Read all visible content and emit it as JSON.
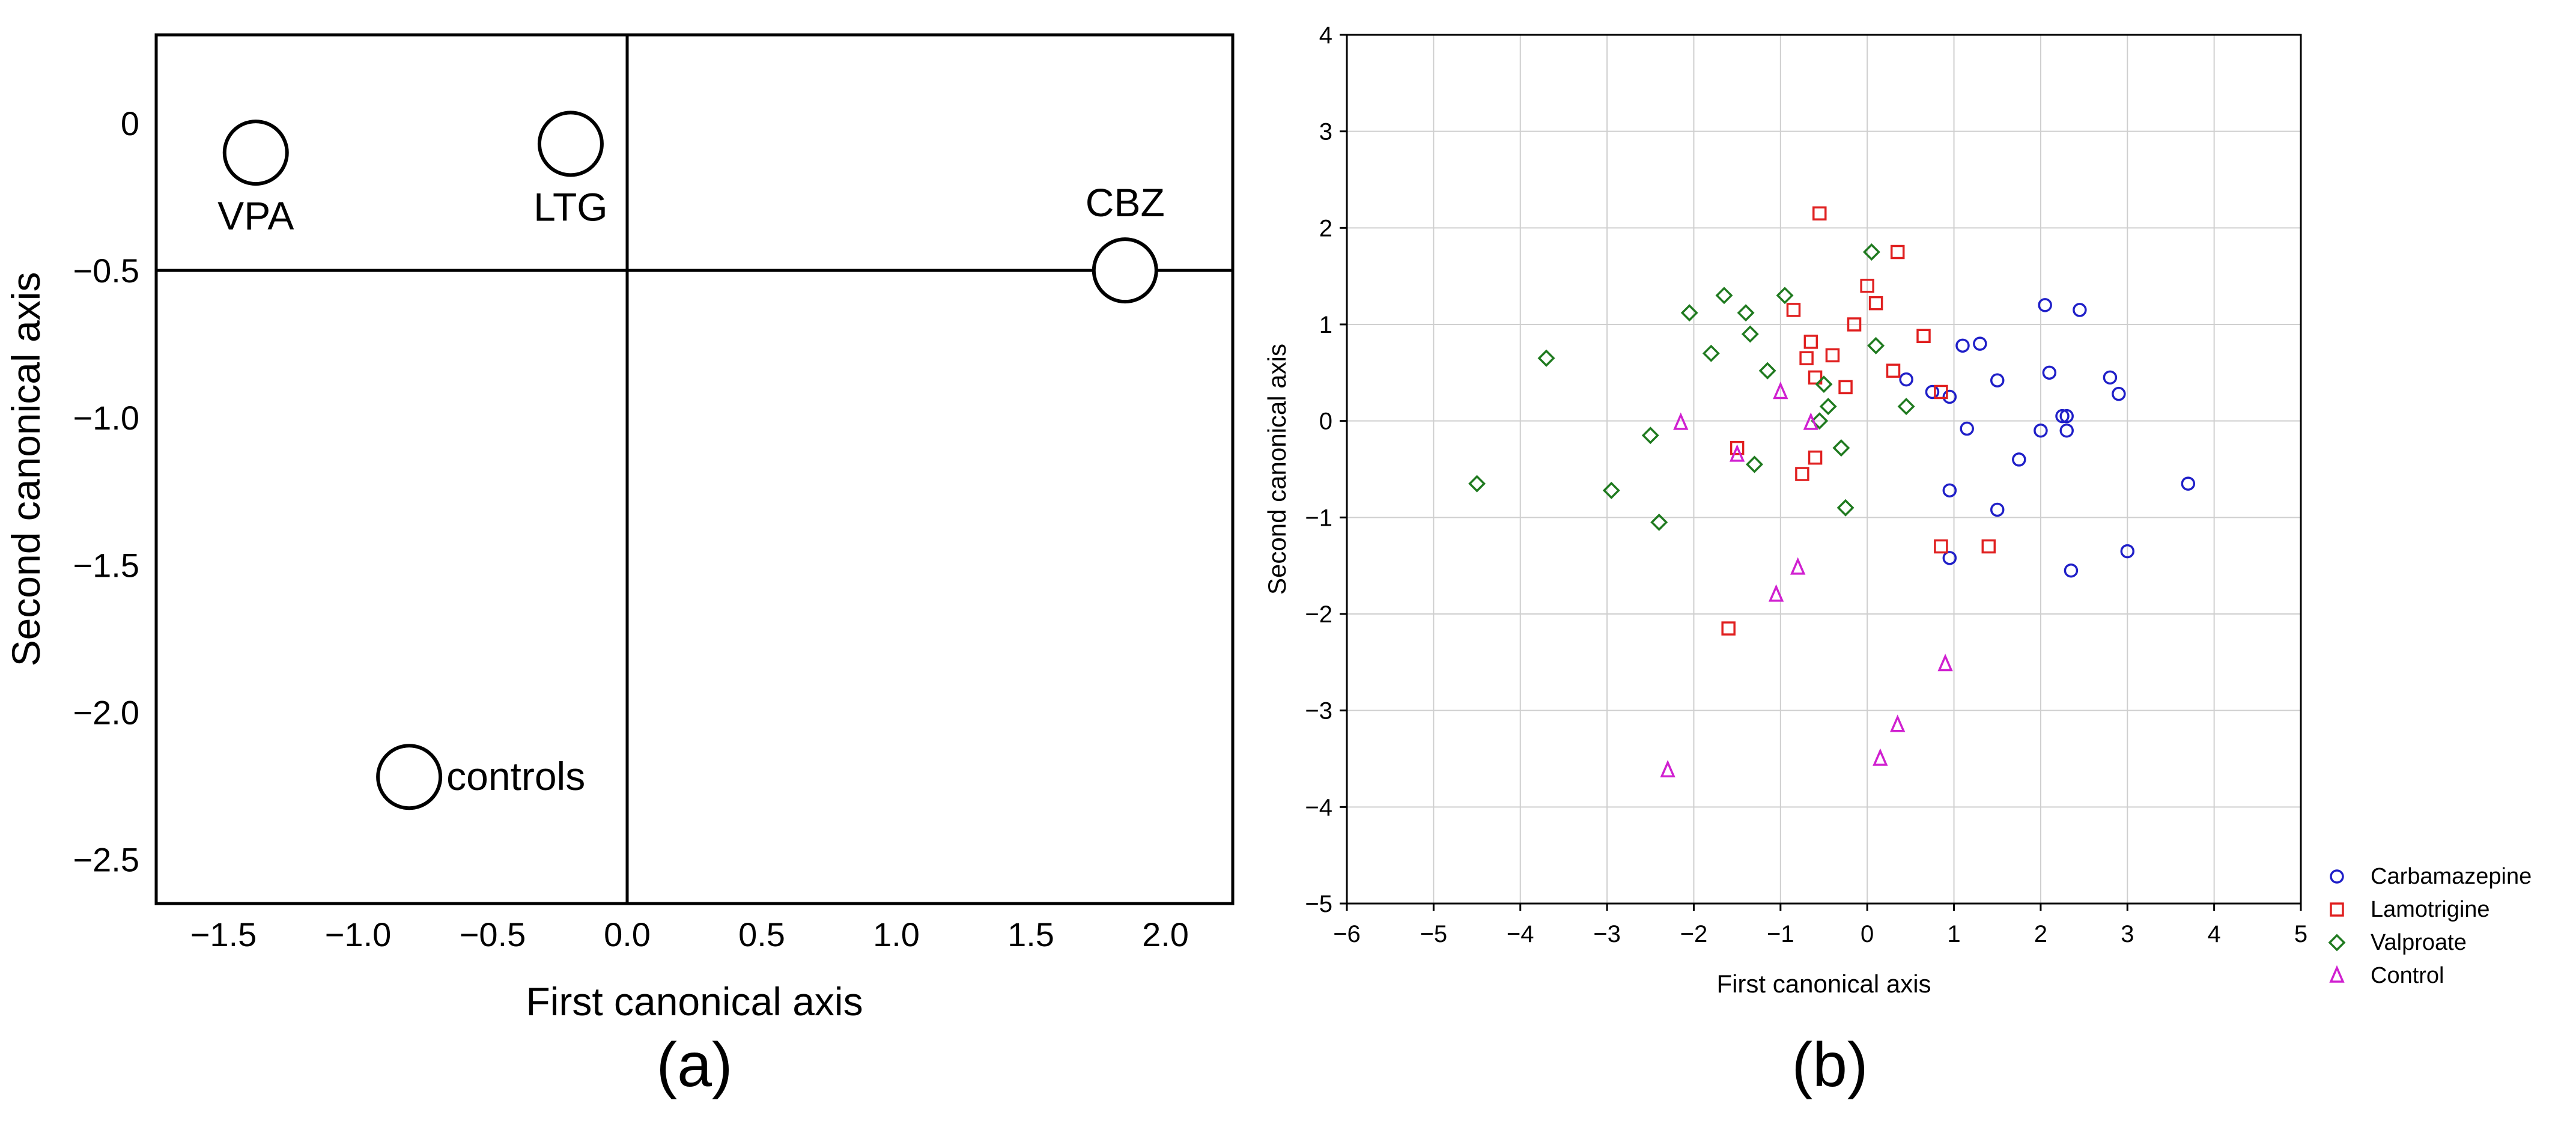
{
  "chart_data": [
    {
      "panel_label": "(a)",
      "type": "scatter",
      "xlabel": "First canonical axis",
      "ylabel": "Second canonical axis",
      "xlim": [
        -1.75,
        2.25
      ],
      "ylim": [
        -2.65,
        0.3
      ],
      "reference_lines": {
        "x": 0,
        "y": -0.5
      },
      "x_ticks": [
        {
          "value": -1.5,
          "label": "−1.5"
        },
        {
          "value": -1.0,
          "label": "−1.0"
        },
        {
          "value": -0.5,
          "label": "−0.5"
        },
        {
          "value": 0.0,
          "label": "0.0"
        },
        {
          "value": 0.5,
          "label": "0.5"
        },
        {
          "value": 1.0,
          "label": "1.0"
        },
        {
          "value": 1.5,
          "label": "1.5"
        },
        {
          "value": 2.0,
          "label": "2.0"
        }
      ],
      "y_ticks": [
        {
          "value": 0,
          "label": "0"
        },
        {
          "value": -0.5,
          "label": "−0.5"
        },
        {
          "value": -1.0,
          "label": "−1.0"
        },
        {
          "value": -1.5,
          "label": "−1.5"
        },
        {
          "value": -2.0,
          "label": "−2.0"
        },
        {
          "value": -2.5,
          "label": "−2.5"
        }
      ],
      "points": [
        {
          "label": "VPA",
          "x": -1.38,
          "y": -0.1,
          "label_side": "below"
        },
        {
          "label": "LTG",
          "x": -0.21,
          "y": -0.07,
          "label_side": "below"
        },
        {
          "label": "CBZ",
          "x": 1.85,
          "y": -0.5,
          "label_side": "above"
        },
        {
          "label": "controls",
          "x": -0.81,
          "y": -2.22,
          "label_side": "right"
        }
      ]
    },
    {
      "panel_label": "(b)",
      "type": "scatter",
      "xlabel": "First canonical axis",
      "ylabel": "Second canonical axis",
      "xlim": [
        -6,
        5
      ],
      "ylim": [
        -5,
        4
      ],
      "grid": true,
      "legend_position": "bottom-right",
      "x_ticks": [
        "−6",
        "−5",
        "−4",
        "−3",
        "−2",
        "−1",
        "0",
        "1",
        "2",
        "3",
        "4",
        "5"
      ],
      "y_ticks": [
        "−5",
        "−4",
        "−3",
        "−2",
        "−1",
        "0",
        "1",
        "2",
        "3",
        "4"
      ],
      "series": [
        {
          "name": "Carbamazepine",
          "marker": "circle",
          "color": "#1f1fc8",
          "points": [
            [
              0.45,
              0.43
            ],
            [
              0.75,
              0.3
            ],
            [
              0.95,
              0.25
            ],
            [
              1.1,
              0.78
            ],
            [
              1.3,
              0.8
            ],
            [
              1.5,
              0.42
            ],
            [
              1.15,
              -0.08
            ],
            [
              1.75,
              -0.4
            ],
            [
              0.95,
              -0.72
            ],
            [
              1.5,
              -0.92
            ],
            [
              0.95,
              -1.42
            ],
            [
              2.05,
              1.2
            ],
            [
              2.45,
              1.15
            ],
            [
              2.1,
              0.5
            ],
            [
              2.8,
              0.45
            ],
            [
              2.9,
              0.28
            ],
            [
              2.25,
              0.05
            ],
            [
              2.3,
              0.05
            ],
            [
              2.0,
              -0.1
            ],
            [
              2.3,
              -0.1
            ],
            [
              2.35,
              -1.55
            ],
            [
              3.0,
              -1.35
            ],
            [
              3.7,
              -0.65
            ]
          ]
        },
        {
          "name": "Lamotrigine",
          "marker": "square",
          "color": "#e02020",
          "points": [
            [
              -0.55,
              2.15
            ],
            [
              0.35,
              1.75
            ],
            [
              0.0,
              1.4
            ],
            [
              0.1,
              1.22
            ],
            [
              -0.85,
              1.15
            ],
            [
              -0.15,
              1.0
            ],
            [
              0.65,
              0.88
            ],
            [
              -0.65,
              0.82
            ],
            [
              -0.4,
              0.68
            ],
            [
              -0.7,
              0.65
            ],
            [
              0.3,
              0.52
            ],
            [
              -0.6,
              0.45
            ],
            [
              -0.25,
              0.35
            ],
            [
              0.85,
              0.3
            ],
            [
              -1.5,
              -0.28
            ],
            [
              -0.6,
              -0.38
            ],
            [
              -0.75,
              -0.55
            ],
            [
              0.85,
              -1.3
            ],
            [
              1.4,
              -1.3
            ],
            [
              -1.6,
              -2.15
            ]
          ]
        },
        {
          "name": "Valproate",
          "marker": "diamond",
          "color": "#1f7a1f",
          "points": [
            [
              0.05,
              1.75
            ],
            [
              -1.65,
              1.3
            ],
            [
              -0.95,
              1.3
            ],
            [
              -2.05,
              1.12
            ],
            [
              -1.4,
              1.12
            ],
            [
              -1.35,
              0.9
            ],
            [
              0.1,
              0.78
            ],
            [
              -1.8,
              0.7
            ],
            [
              -3.7,
              0.65
            ],
            [
              -1.15,
              0.52
            ],
            [
              -0.5,
              0.38
            ],
            [
              -0.45,
              0.15
            ],
            [
              0.45,
              0.15
            ],
            [
              -0.55,
              0.0
            ],
            [
              -2.5,
              -0.15
            ],
            [
              -0.3,
              -0.28
            ],
            [
              -1.3,
              -0.45
            ],
            [
              -4.5,
              -0.65
            ],
            [
              -2.95,
              -0.72
            ],
            [
              -0.25,
              -0.9
            ],
            [
              -2.4,
              -1.05
            ]
          ]
        },
        {
          "name": "Control",
          "marker": "triangle",
          "color": "#d020d0",
          "points": [
            [
              -1.0,
              0.3
            ],
            [
              -2.15,
              -0.02
            ],
            [
              -0.65,
              -0.02
            ],
            [
              -1.5,
              -0.35
            ],
            [
              -0.8,
              -1.52
            ],
            [
              -1.05,
              -1.8
            ],
            [
              0.9,
              -2.52
            ],
            [
              0.35,
              -3.15
            ],
            [
              0.15,
              -3.5
            ],
            [
              -2.3,
              -3.62
            ]
          ]
        }
      ]
    }
  ]
}
